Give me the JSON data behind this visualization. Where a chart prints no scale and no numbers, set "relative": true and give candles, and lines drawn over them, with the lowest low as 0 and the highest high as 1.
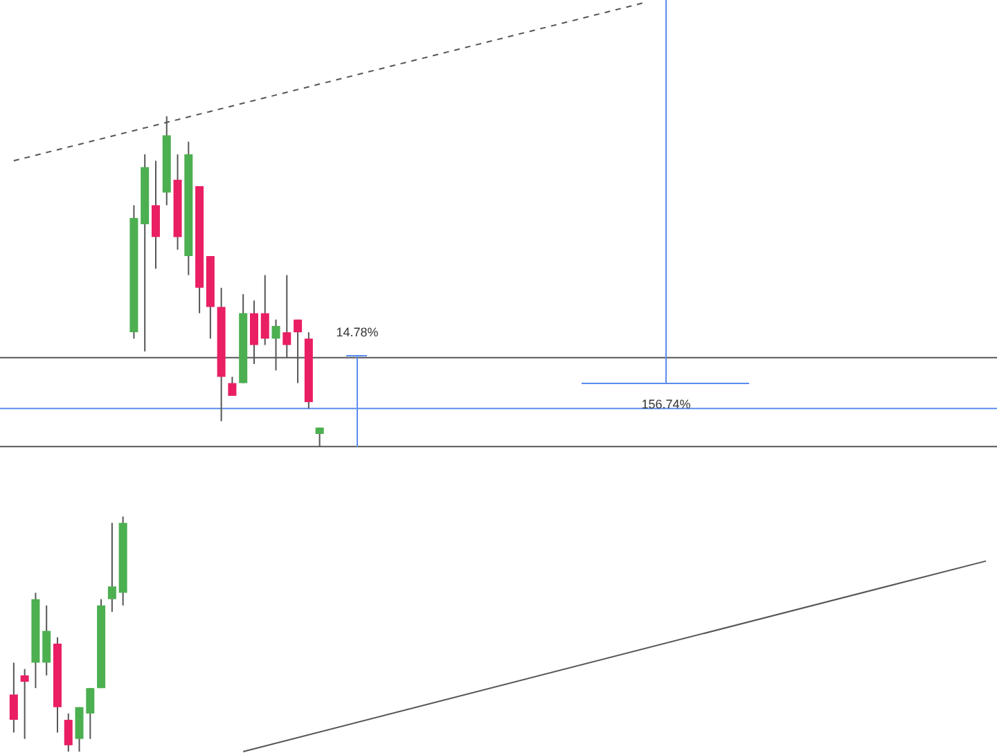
{
  "chart_data": {
    "type": "candlestick",
    "relative": true,
    "categories": [
      null,
      null,
      null,
      null,
      null,
      null,
      null,
      null,
      null,
      null,
      null,
      null,
      null,
      null,
      null,
      null,
      null,
      null,
      null,
      null,
      null,
      null,
      null,
      null,
      null,
      null,
      null,
      null,
      null,
      null,
      null,
      null,
      null,
      null,
      null,
      null,
      null,
      null,
      null,
      null,
      null,
      null,
      null,
      null,
      null,
      null,
      null,
      null,
      null,
      null,
      null,
      null,
      null,
      null,
      null,
      null,
      null,
      null,
      null,
      null,
      null,
      null,
      null,
      null,
      null,
      null,
      null,
      null,
      null,
      null,
      null,
      null,
      null,
      null,
      null,
      null,
      null,
      null,
      null,
      null,
      null,
      null,
      null,
      null,
      null,
      null,
      null,
      null,
      null,
      null
    ],
    "ohlc": [
      [
        0.09,
        0.14,
        0.03,
        0.05
      ],
      [
        0.12,
        0.13,
        0.02,
        0.11
      ],
      [
        0.14,
        0.25,
        0.1,
        0.24
      ],
      [
        0.14,
        0.23,
        0.12,
        0.19
      ],
      [
        0.17,
        0.18,
        0.03,
        0.07
      ],
      [
        0.05,
        0.06,
        0,
        0.01
      ],
      [
        0.02,
        0.07,
        0,
        0.07
      ],
      [
        0.06,
        0.1,
        0.02,
        0.1
      ],
      [
        0.1,
        0.24,
        0.1,
        0.23
      ],
      [
        0.24,
        0.36,
        0.22,
        0.26
      ],
      [
        0.25,
        0.37,
        0.23,
        0.36
      ],
      [
        0.66,
        0.86,
        0.65,
        0.84
      ],
      [
        0.83,
        0.94,
        0.63,
        0.92
      ],
      [
        0.86,
        0.93,
        0.76,
        0.81
      ],
      [
        0.88,
        1,
        0.86,
        0.97
      ],
      [
        0.9,
        0.94,
        0.79,
        0.81
      ],
      [
        0.78,
        0.96,
        0.75,
        0.94
      ],
      [
        0.89,
        0.89,
        0.69,
        0.73
      ],
      [
        0.78,
        0.78,
        0.65,
        0.7
      ],
      [
        0.7,
        0.73,
        0.52,
        0.59
      ],
      [
        0.58,
        0.59,
        0.56,
        0.56
      ],
      [
        0.58,
        0.72,
        0.58,
        0.69
      ],
      [
        0.69,
        0.71,
        0.61,
        0.64
      ],
      [
        0.69,
        0.75,
        0.64,
        0.65
      ],
      [
        0.65,
        0.68,
        0.6,
        0.67
      ],
      [
        0.66,
        0.75,
        0.62,
        0.64
      ],
      [
        0.68,
        0.68,
        0.58,
        0.66
      ],
      [
        0.65,
        0.66,
        0.54,
        0.55
      ],
      [
        0.5,
        0.51,
        0.48,
        0.51
      ],
      null,
      null,
      null,
      null,
      null,
      null,
      null,
      null,
      null,
      null,
      null,
      null,
      null,
      null,
      null,
      null,
      null,
      null,
      null,
      null,
      null,
      null,
      null,
      null,
      null,
      null,
      null,
      null,
      null,
      null,
      null,
      null,
      null,
      null,
      null,
      null,
      null,
      null,
      null,
      null,
      null,
      null,
      null,
      null,
      null,
      null,
      null,
      null,
      null,
      null,
      null,
      null,
      null,
      null,
      null,
      null,
      null,
      null,
      null,
      null,
      null
    ],
    "series": [
      {
        "type": "line",
        "color": "#555555",
        "line_style": "dashed",
        "values": [
          0.93,
          null,
          null,
          null,
          null,
          null,
          null,
          null,
          null,
          null,
          null,
          null,
          null,
          null,
          null,
          null,
          null,
          null,
          null,
          null,
          null,
          null,
          null,
          null,
          null,
          null,
          null,
          null,
          null,
          null,
          null,
          null,
          null,
          null,
          null,
          null,
          null,
          null,
          null,
          null,
          null,
          null,
          null,
          null,
          null,
          null,
          null,
          null,
          null,
          null,
          null,
          null,
          null,
          null,
          null,
          null,
          null,
          null,
          1.18,
          null,
          null,
          null,
          null,
          null,
          null,
          null,
          null,
          null,
          null,
          null,
          null,
          null,
          null,
          null,
          null,
          null,
          null,
          null,
          null,
          null,
          null,
          null,
          null,
          null,
          null,
          null,
          null,
          null,
          null,
          null
        ]
      },
      {
        "type": "line",
        "color": "#555555",
        "line_style": "solid",
        "values": [
          null,
          null,
          null,
          null,
          null,
          null,
          null,
          null,
          null,
          null,
          null,
          null,
          null,
          null,
          null,
          null,
          null,
          null,
          null,
          null,
          null,
          0,
          null,
          null,
          null,
          null,
          null,
          null,
          null,
          null,
          null,
          null,
          null,
          null,
          null,
          null,
          null,
          null,
          null,
          null,
          null,
          null,
          null,
          null,
          null,
          null,
          null,
          null,
          null,
          null,
          null,
          null,
          null,
          null,
          null,
          null,
          null,
          null,
          null,
          null,
          null,
          null,
          null,
          null,
          null,
          null,
          null,
          null,
          null,
          null,
          null,
          null,
          null,
          null,
          null,
          null,
          null,
          null,
          null,
          null,
          null,
          null,
          null,
          null,
          null,
          null,
          null,
          null,
          null,
          0.3
        ]
      }
    ],
    "ref_lines": [
      {
        "axis": "y",
        "value": 0.62,
        "color": "#555555"
      },
      {
        "axis": "y",
        "value": 0.54,
        "color": "#5b8cf0"
      },
      {
        "axis": "y",
        "value": 0.48,
        "color": "#555555"
      }
    ],
    "annotations": [
      "14.78%",
      "156.74%"
    ]
  }
}
